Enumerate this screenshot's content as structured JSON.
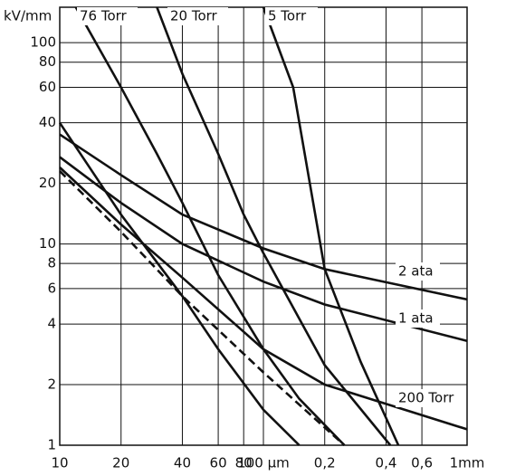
{
  "chart_data": {
    "type": "line",
    "y_unit_label": "kV/mm",
    "log_x": true,
    "log_y": true,
    "grid": true,
    "color": "#111111",
    "xlim": [
      10,
      1000
    ],
    "ylim": [
      1,
      150
    ],
    "xticks": [
      10,
      20,
      40,
      60,
      80,
      {
        "value": 100,
        "label": "100 µm"
      },
      {
        "value": 200,
        "label": "0,2"
      },
      {
        "value": 400,
        "label": "0,4"
      },
      {
        "value": 600,
        "label": "0,6"
      },
      {
        "value": 1000,
        "label": "1mm"
      }
    ],
    "yticks": [
      1,
      2,
      4,
      6,
      8,
      10,
      20,
      40,
      60,
      80,
      100
    ],
    "series": [
      {
        "name": "76 Torr",
        "x": [
          12,
          20,
          30,
          40,
          60,
          100,
          150,
          250
        ],
        "values": [
          150,
          60,
          28,
          16,
          7,
          3,
          1.7,
          1
        ]
      },
      {
        "name": "20 Torr",
        "x": [
          30,
          40,
          60,
          80,
          100,
          200,
          420
        ],
        "values": [
          150,
          70,
          28,
          14,
          9,
          2.5,
          1
        ]
      },
      {
        "name": "5 Torr",
        "x": [
          100,
          140,
          200,
          300,
          460
        ],
        "values": [
          150,
          60,
          7.5,
          2.6,
          1
        ]
      },
      {
        "name": "2 ata",
        "x": [
          10,
          20,
          40,
          100,
          200,
          1000
        ],
        "values": [
          35,
          22,
          14,
          9.5,
          7.5,
          5.3
        ]
      },
      {
        "name": "1 ata",
        "x": [
          10,
          20,
          40,
          100,
          200,
          1000
        ],
        "values": [
          27,
          16,
          10,
          6.5,
          5,
          3.3
        ]
      },
      {
        "name": "200 Torr",
        "x": [
          10,
          20,
          40,
          100,
          200,
          1000
        ],
        "values": [
          24,
          12.5,
          6.8,
          3,
          2,
          1.2
        ]
      },
      {
        "x": [
          10,
          20,
          40,
          60,
          100,
          150
        ],
        "values": [
          40,
          14,
          5.5,
          3,
          1.5,
          1
        ]
      },
      {
        "dashed": true,
        "x": [
          10,
          20,
          40,
          100,
          250
        ],
        "values": [
          23,
          11.5,
          5.5,
          2.3,
          1
        ]
      }
    ]
  }
}
